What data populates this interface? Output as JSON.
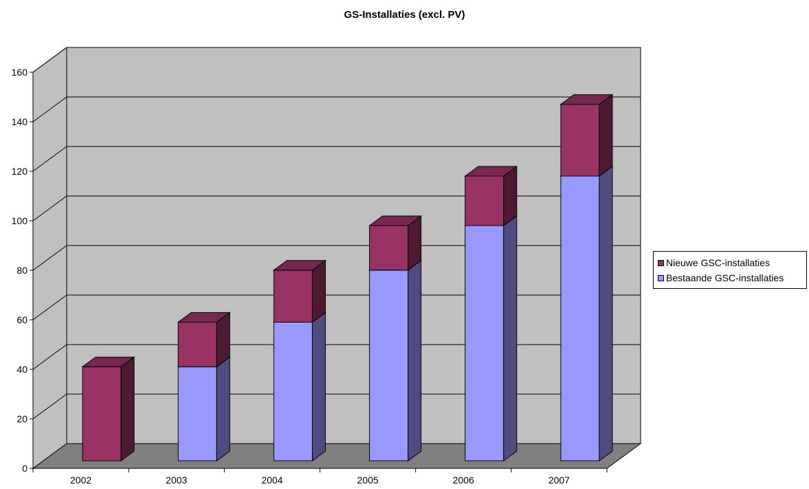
{
  "chart_data": {
    "type": "bar",
    "stacked": true,
    "three_d": true,
    "title": "GS-Installaties (excl. PV)",
    "categories": [
      "2002",
      "2003",
      "2004",
      "2005",
      "2006",
      "2007"
    ],
    "series": [
      {
        "name": "Bestaande GSC-installaties",
        "color": "#9999ff",
        "values": [
          0,
          38,
          56,
          77,
          95,
          115
        ]
      },
      {
        "name": "Nieuwe GSC-installaties",
        "color": "#993366",
        "values": [
          38,
          18,
          21,
          18,
          20,
          29
        ]
      }
    ],
    "ylim": [
      0,
      160
    ],
    "yticks": [
      0,
      20,
      40,
      60,
      80,
      100,
      120,
      140,
      160
    ],
    "grid": true,
    "legend_position": "right",
    "legend_order": [
      "Nieuwe GSC-installaties",
      "Bestaande GSC-installaties"
    ],
    "wall_color": "#c0c0c0",
    "floor_color": "#808080"
  }
}
